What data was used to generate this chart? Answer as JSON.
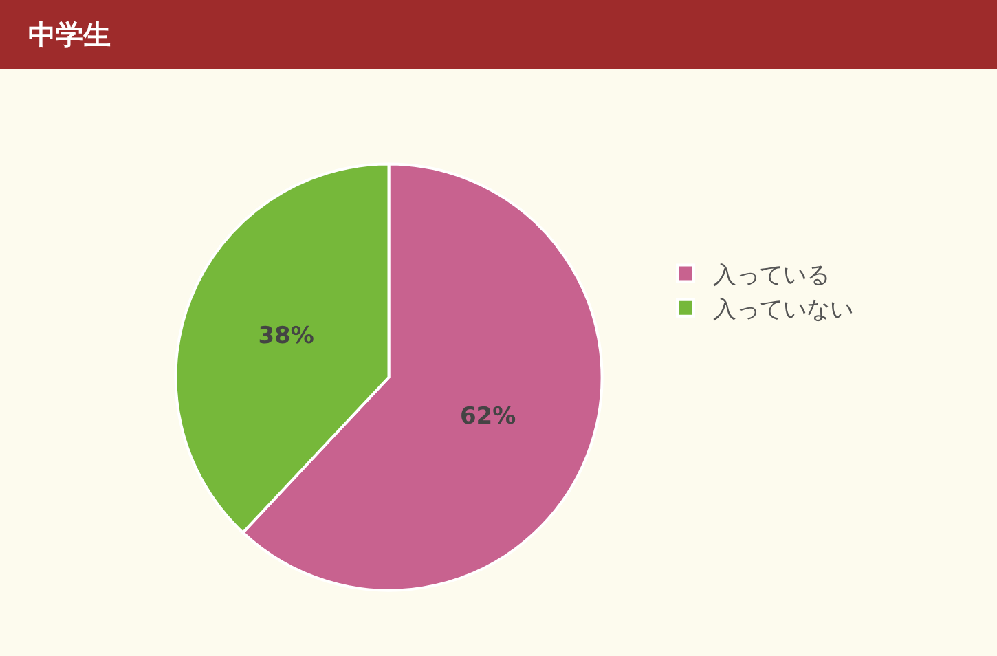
{
  "chart_data": {
    "type": "pie",
    "title": "中学生",
    "categories": [
      "入っている",
      "入っていない"
    ],
    "values": [
      62,
      38
    ],
    "value_labels": [
      "62%",
      "38%"
    ],
    "colors": [
      "#c8628f",
      "#76b83a"
    ],
    "legend": "right"
  }
}
